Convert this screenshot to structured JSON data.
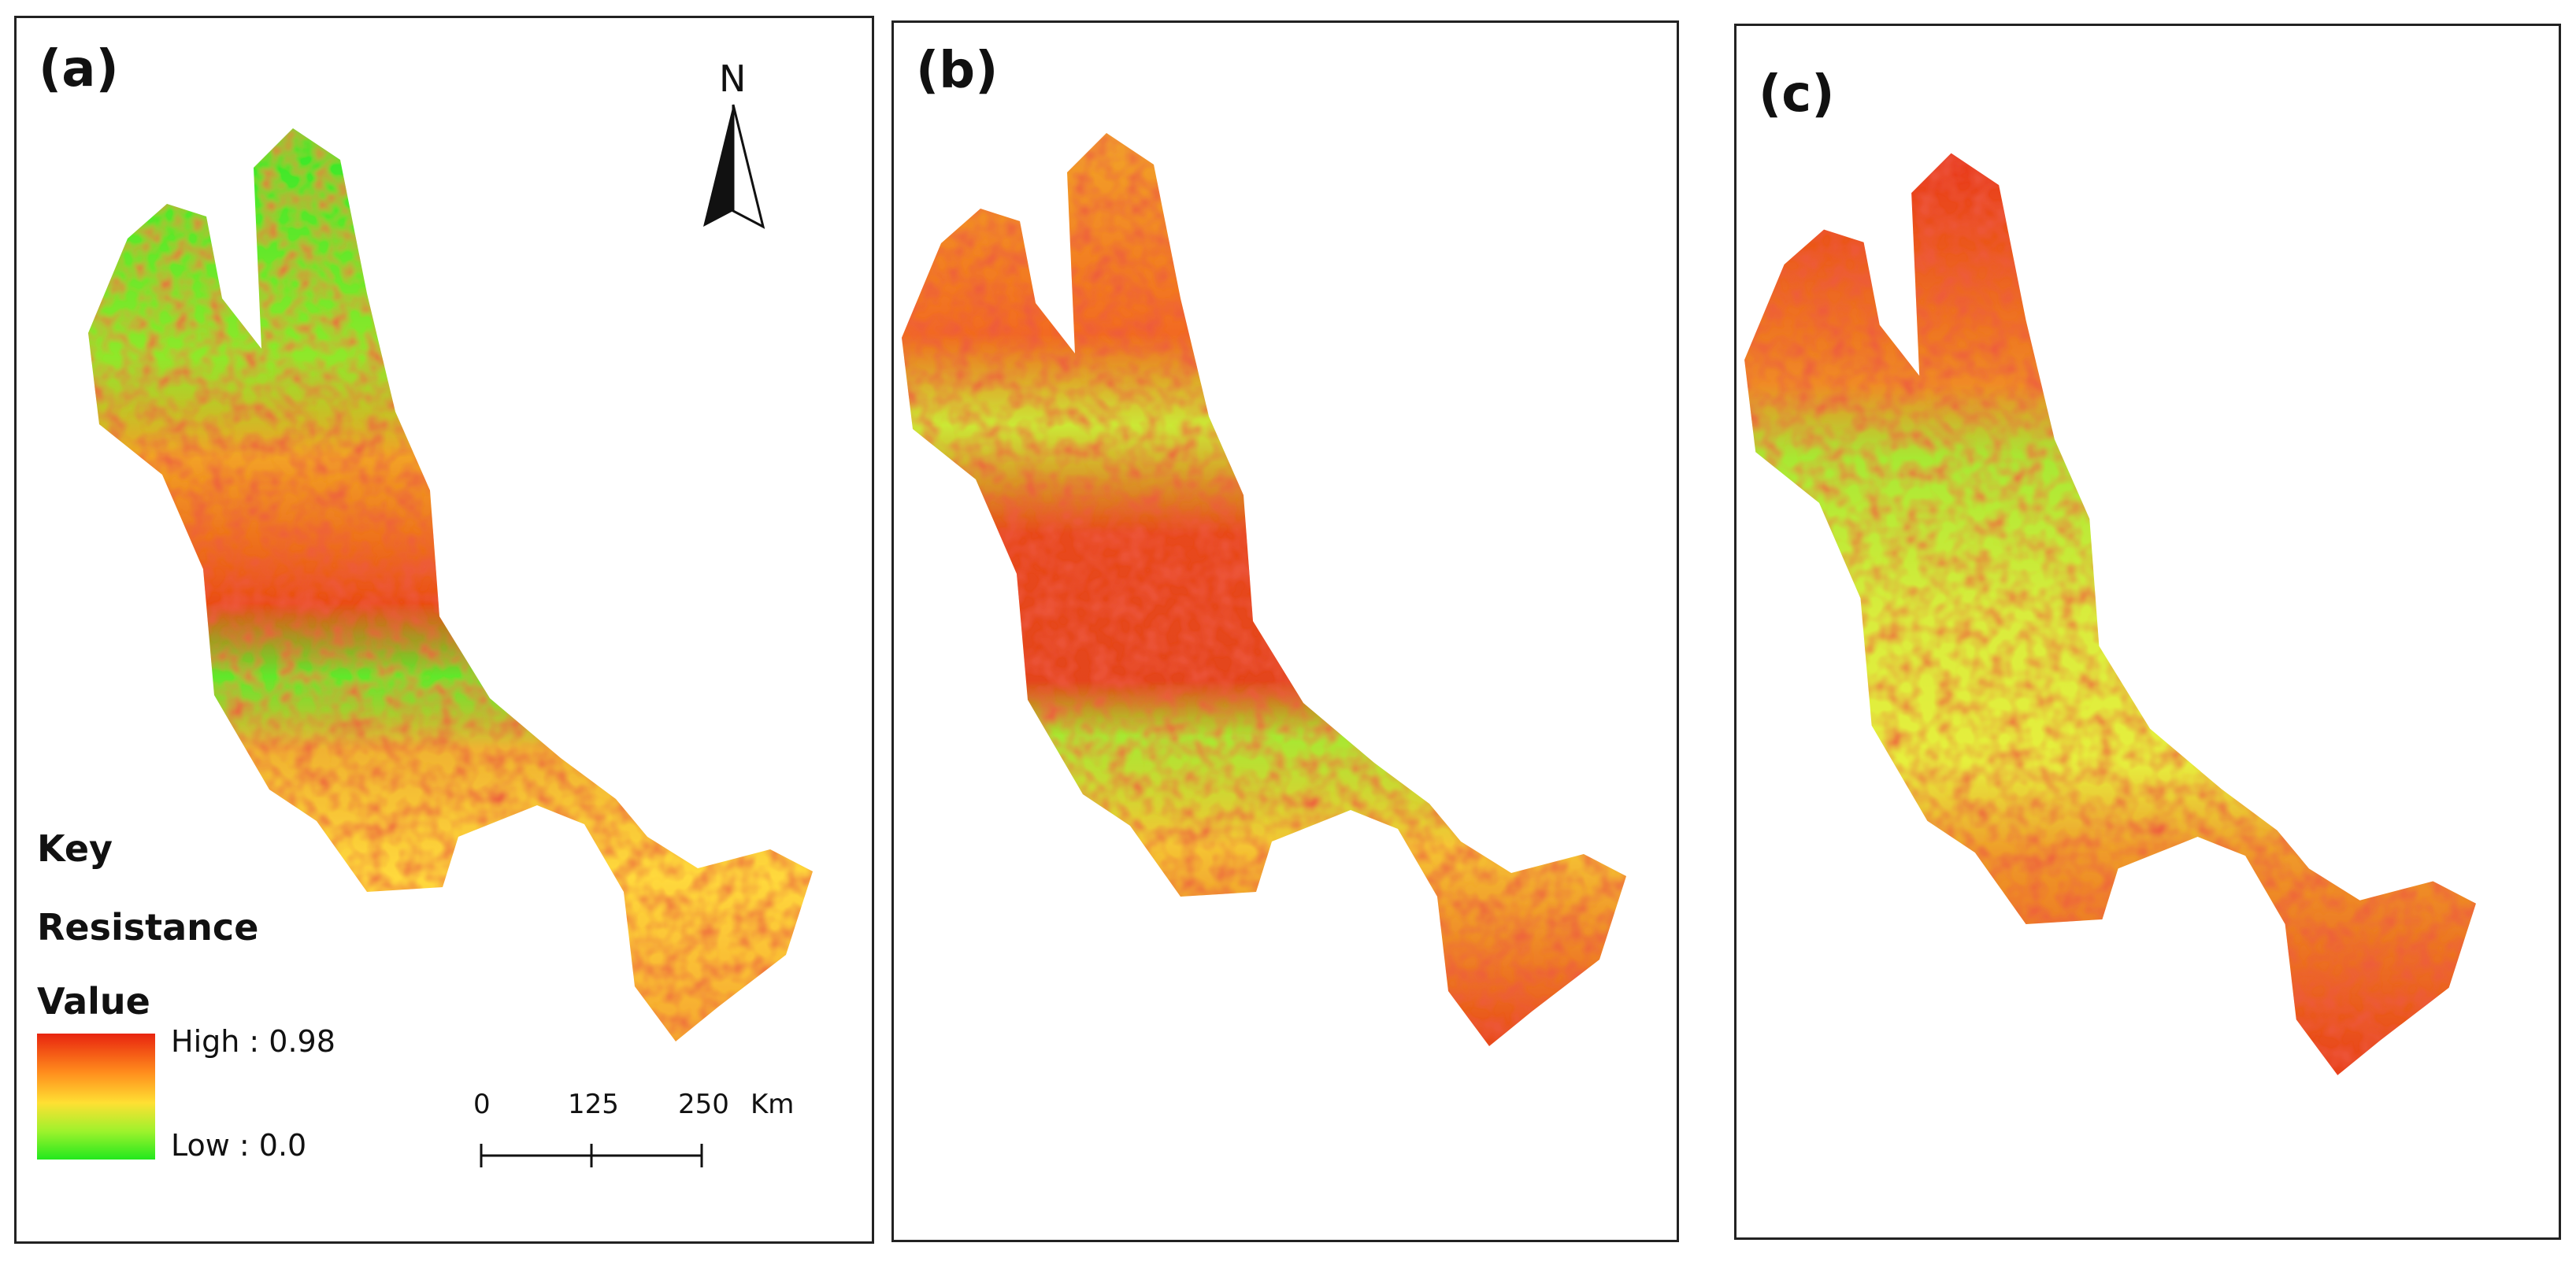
{
  "panels": [
    {
      "label": "(a)"
    },
    {
      "label": "(b)"
    },
    {
      "label": "(c)"
    }
  ],
  "north_arrow": {
    "letter": "N"
  },
  "legend": {
    "key": "Key",
    "title_line1": "Resistance",
    "title_line2": "Value",
    "high": "High : 0.98",
    "low": "Low : 0.0",
    "colors": {
      "high": "#e8240f",
      "mid": "#ffe033",
      "low": "#22e81e"
    }
  },
  "scale_bar": {
    "ticks": [
      "0",
      "125",
      "250"
    ],
    "unit": "Km"
  }
}
